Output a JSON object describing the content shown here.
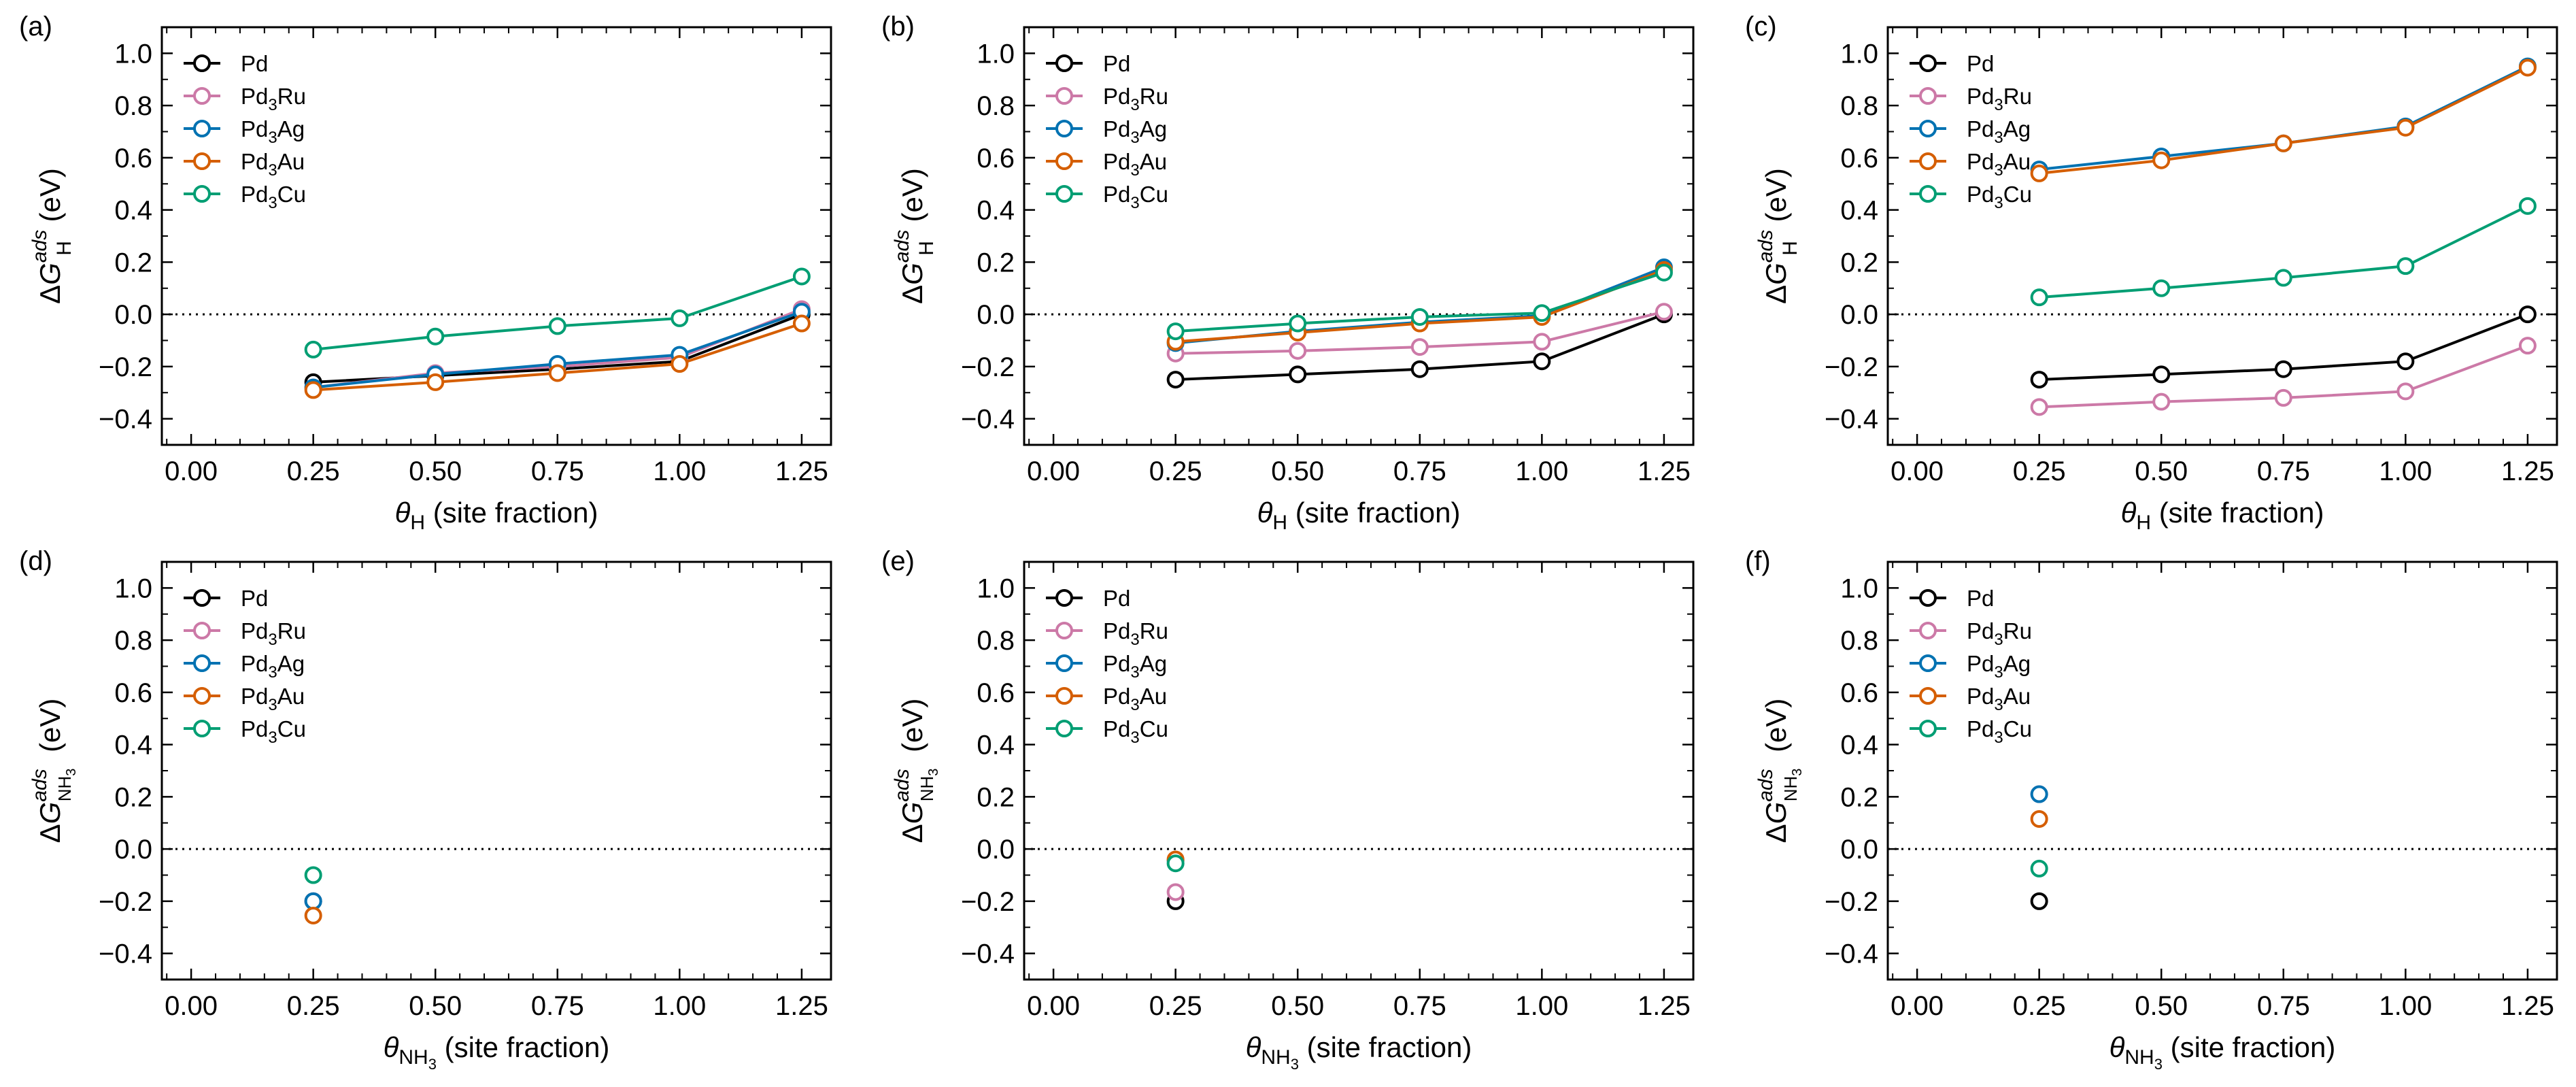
{
  "colors": {
    "Pd": "#000000",
    "Pd3Ru": "#cc79a7",
    "Pd3Ag": "#0072b2",
    "Pd3Au": "#d55e00",
    "Pd3Cu": "#009e73"
  },
  "legend_labels": [
    {
      "key": "Pd",
      "base": "Pd",
      "sub": "",
      "rest": ""
    },
    {
      "key": "Pd3Ru",
      "base": "Pd",
      "sub": "3",
      "rest": "Ru"
    },
    {
      "key": "Pd3Ag",
      "base": "Pd",
      "sub": "3",
      "rest": "Ag"
    },
    {
      "key": "Pd3Au",
      "base": "Pd",
      "sub": "3",
      "rest": "Au"
    },
    {
      "key": "Pd3Cu",
      "base": "Pd",
      "sub": "3",
      "rest": "Cu"
    }
  ],
  "axis_text": {
    "delta": "Δ",
    "G": "G",
    "ads": "ads",
    "unit": " (eV)",
    "theta": "θ",
    "site_fraction": " (site fraction)",
    "H": "H",
    "NH": "NH",
    "three": "3"
  },
  "x_ticks": [
    "0.00",
    "0.25",
    "0.50",
    "0.75",
    "1.00",
    "1.25"
  ],
  "y_ticks": [
    "−0.4",
    "−0.2",
    "0.0",
    "0.2",
    "0.4",
    "0.6",
    "0.8",
    "1.0"
  ],
  "chart_data": [
    {
      "type": "line",
      "panel": "(a)",
      "adsorbate": "H",
      "xlim": [
        -0.06,
        1.31
      ],
      "ylim": [
        -0.5,
        1.1
      ],
      "reference_line_y": 0.0,
      "x": [
        0.25,
        0.5,
        0.75,
        1.0,
        1.25
      ],
      "series": [
        {
          "name": "Pd",
          "values": [
            -0.26,
            -0.235,
            -0.21,
            -0.18,
            0.0
          ]
        },
        {
          "name": "Pd3Ru",
          "values": [
            -0.28,
            -0.225,
            -0.2,
            -0.165,
            0.02
          ]
        },
        {
          "name": "Pd3Ag",
          "values": [
            -0.28,
            -0.23,
            -0.19,
            -0.155,
            0.01
          ]
        },
        {
          "name": "Pd3Au",
          "values": [
            -0.29,
            -0.26,
            -0.225,
            -0.19,
            -0.035
          ]
        },
        {
          "name": "Pd3Cu",
          "values": [
            -0.135,
            -0.085,
            -0.045,
            -0.015,
            0.145
          ]
        }
      ]
    },
    {
      "type": "line",
      "panel": "(b)",
      "adsorbate": "H",
      "xlim": [
        -0.06,
        1.31
      ],
      "ylim": [
        -0.5,
        1.1
      ],
      "reference_line_y": 0.0,
      "x": [
        0.25,
        0.5,
        0.75,
        1.0,
        1.25
      ],
      "series": [
        {
          "name": "Pd",
          "values": [
            -0.25,
            -0.23,
            -0.21,
            -0.18,
            0.0
          ]
        },
        {
          "name": "Pd3Ru",
          "values": [
            -0.15,
            -0.14,
            -0.125,
            -0.105,
            0.01
          ]
        },
        {
          "name": "Pd3Ag",
          "values": [
            -0.11,
            -0.065,
            -0.03,
            -0.005,
            0.18
          ]
        },
        {
          "name": "Pd3Au",
          "values": [
            -0.105,
            -0.07,
            -0.035,
            -0.01,
            0.17
          ]
        },
        {
          "name": "Pd3Cu",
          "values": [
            -0.065,
            -0.035,
            -0.01,
            0.005,
            0.16
          ]
        }
      ]
    },
    {
      "type": "line",
      "panel": "(c)",
      "adsorbate": "H",
      "xlim": [
        -0.06,
        1.31
      ],
      "ylim": [
        -0.5,
        1.1
      ],
      "reference_line_y": 0.0,
      "x": [
        0.25,
        0.5,
        0.75,
        1.0,
        1.25
      ],
      "series": [
        {
          "name": "Pd",
          "values": [
            -0.25,
            -0.23,
            -0.21,
            -0.18,
            0.0
          ]
        },
        {
          "name": "Pd3Ru",
          "values": [
            -0.355,
            -0.335,
            -0.32,
            -0.295,
            -0.12
          ]
        },
        {
          "name": "Pd3Ag",
          "values": [
            0.555,
            0.605,
            0.655,
            0.72,
            0.95
          ]
        },
        {
          "name": "Pd3Au",
          "values": [
            0.54,
            0.59,
            0.655,
            0.715,
            0.945
          ]
        },
        {
          "name": "Pd3Cu",
          "values": [
            0.065,
            0.1,
            0.14,
            0.185,
            0.415
          ]
        }
      ]
    },
    {
      "type": "scatter",
      "panel": "(d)",
      "adsorbate": "NH3",
      "xlim": [
        -0.06,
        1.31
      ],
      "ylim": [
        -0.5,
        1.1
      ],
      "reference_line_y": 0.0,
      "x": [
        0.25
      ],
      "series": [
        {
          "name": "Pd",
          "values": [
            -0.2
          ]
        },
        {
          "name": "Pd3Ru",
          "values": [
            -0.2
          ]
        },
        {
          "name": "Pd3Ag",
          "values": [
            -0.2
          ]
        },
        {
          "name": "Pd3Au",
          "values": [
            -0.255
          ]
        },
        {
          "name": "Pd3Cu",
          "values": [
            -0.1
          ]
        }
      ]
    },
    {
      "type": "scatter",
      "panel": "(e)",
      "adsorbate": "NH3",
      "xlim": [
        -0.06,
        1.31
      ],
      "ylim": [
        -0.5,
        1.1
      ],
      "reference_line_y": 0.0,
      "x": [
        0.25
      ],
      "series": [
        {
          "name": "Pd",
          "values": [
            -0.2
          ]
        },
        {
          "name": "Pd3Ru",
          "values": [
            -0.165
          ]
        },
        {
          "name": "Pd3Ag",
          "values": [
            -0.045
          ]
        },
        {
          "name": "Pd3Au",
          "values": [
            -0.04
          ]
        },
        {
          "name": "Pd3Cu",
          "values": [
            -0.055
          ]
        }
      ]
    },
    {
      "type": "scatter",
      "panel": "(f)",
      "adsorbate": "NH3",
      "xlim": [
        -0.06,
        1.31
      ],
      "ylim": [
        -0.5,
        1.1
      ],
      "reference_line_y": 0.0,
      "x": [
        0.25
      ],
      "series": [
        {
          "name": "Pd",
          "values": [
            -0.2
          ]
        },
        {
          "name": "Pd3Ru",
          "values": [
            0.21
          ]
        },
        {
          "name": "Pd3Ag",
          "values": [
            0.21
          ]
        },
        {
          "name": "Pd3Au",
          "values": [
            0.115
          ]
        },
        {
          "name": "Pd3Cu",
          "values": [
            -0.075
          ]
        }
      ]
    }
  ]
}
